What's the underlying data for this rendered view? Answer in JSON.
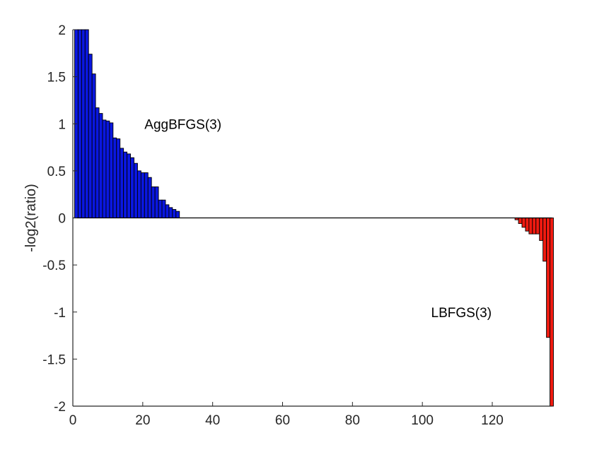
{
  "chart_data": {
    "type": "bar",
    "title": "",
    "xlabel": "",
    "ylabel": "-log2(ratio)",
    "xlim": [
      0,
      137
    ],
    "ylim": [
      -2,
      2
    ],
    "xticks": [
      0,
      20,
      40,
      60,
      80,
      100,
      120
    ],
    "yticks": [
      -2,
      -1.5,
      -1,
      -0.5,
      0,
      0.5,
      1,
      1.5,
      2
    ],
    "ytick_labels": [
      "-2",
      "-1.5",
      "-1",
      "-0.5",
      "0",
      "0.5",
      "1",
      "1.5",
      "2"
    ],
    "grid": false,
    "bar_width": 1,
    "annotations": [
      {
        "text": "AggBFGS(3)",
        "x": 20.5,
        "y": 1.0
      },
      {
        "text": "LBFGS(3)",
        "x": 102.5,
        "y": -1.0
      }
    ],
    "colors": {
      "positive": "#0a17e0",
      "negative": "#f01a10",
      "edge": "#000000",
      "axis": "#262626"
    },
    "series": [
      {
        "color": "#0a17e0",
        "x": [
          1,
          2,
          3,
          4,
          5,
          6,
          7,
          8,
          9,
          10,
          11,
          12,
          13,
          14,
          15,
          16,
          17,
          18,
          19,
          20,
          21,
          22,
          23,
          24,
          25,
          26,
          27,
          28,
          29,
          30
        ],
        "values": [
          2,
          2,
          2,
          2,
          1.74,
          1.53,
          1.17,
          1.11,
          1.04,
          1.03,
          1.01,
          0.85,
          0.84,
          0.74,
          0.7,
          0.68,
          0.64,
          0.58,
          0.5,
          0.48,
          0.48,
          0.43,
          0.33,
          0.33,
          0.19,
          0.19,
          0.14,
          0.11,
          0.09,
          0.07
        ]
      },
      {
        "color": "#f01a10",
        "x": [
          127,
          128,
          129,
          130,
          131,
          132,
          133,
          134,
          135,
          136,
          137
        ],
        "values": [
          -0.02,
          -0.06,
          -0.1,
          -0.14,
          -0.17,
          -0.17,
          -0.17,
          -0.24,
          -0.46,
          -1.27,
          -2
        ]
      }
    ]
  }
}
